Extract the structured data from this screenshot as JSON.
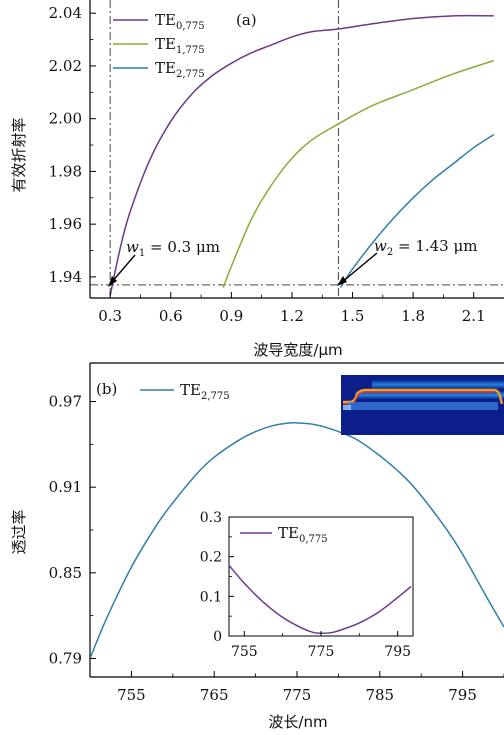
{
  "chart_data": [
    {
      "type": "line",
      "panel_label": "(a)",
      "xlabel": "波导宽度/μm",
      "ylabel": "有效折射率",
      "xlim": [
        0.2,
        2.25
      ],
      "ylim": [
        1.932,
        2.045
      ],
      "xticks": [
        "0.3",
        "0.6",
        "0.9",
        "1.2",
        "1.5",
        "1.8",
        "2.1"
      ],
      "yticks": [
        "1.94",
        "1.96",
        "1.98",
        "2.00",
        "2.02",
        "2.04"
      ],
      "legend": [
        "TE",
        "TE",
        "TE"
      ],
      "legend_subscripts": [
        "0,775",
        "1,775",
        "2,775"
      ],
      "series": [
        {
          "name": "TE0,775",
          "color": "#6b3a8c",
          "x": [
            0.3,
            0.35,
            0.4,
            0.5,
            0.6,
            0.7,
            0.8,
            0.9,
            1.0,
            1.1,
            1.2,
            1.3,
            1.43,
            1.6,
            1.8,
            2.0,
            2.2
          ],
          "y": [
            1.933,
            1.951,
            1.965,
            1.985,
            1.999,
            2.009,
            2.016,
            2.021,
            2.025,
            2.028,
            2.031,
            2.033,
            2.034,
            2.036,
            2.038,
            2.039,
            2.039
          ]
        },
        {
          "name": "TE1,775",
          "color": "#8bab3b",
          "x": [
            0.86,
            0.9,
            1.0,
            1.1,
            1.2,
            1.3,
            1.43,
            1.6,
            1.8,
            2.0,
            2.2
          ],
          "y": [
            1.936,
            1.944,
            1.962,
            1.975,
            1.985,
            1.992,
            1.998,
            2.005,
            2.011,
            2.017,
            2.022
          ]
        },
        {
          "name": "TE2,775",
          "color": "#2f7fab",
          "x": [
            1.44,
            1.5,
            1.6,
            1.7,
            1.8,
            1.9,
            2.0,
            2.1,
            2.2
          ],
          "y": [
            1.936,
            1.943,
            1.953,
            1.962,
            1.97,
            1.977,
            1.983,
            1.989,
            1.994
          ]
        }
      ],
      "reference_lines": {
        "vertical_x": [
          0.3,
          1.43
        ],
        "horizontal_y": [
          1.937
        ]
      },
      "annotations": [
        {
          "var": "w",
          "sub": "1",
          "text": " = 0.3 μm"
        },
        {
          "var": "w",
          "sub": "2",
          "text": " = 1.43 μm"
        }
      ]
    },
    {
      "type": "line",
      "panel_label": "(b)",
      "xlabel": "波长/nm",
      "ylabel": "透过率",
      "xlim": [
        750,
        800
      ],
      "ylim": [
        0.777,
        0.997
      ],
      "xticks": [
        "755",
        "765",
        "775",
        "785",
        "795"
      ],
      "yticks": [
        "0.79",
        "0.85",
        "0.91",
        "0.97"
      ],
      "legend": [
        "TE"
      ],
      "legend_subscripts": [
        "2,775"
      ],
      "series": [
        {
          "name": "TE2,775",
          "color": "#2f7fab",
          "x": [
            750,
            752,
            755,
            758,
            760,
            763,
            765,
            768,
            770,
            772,
            774,
            775,
            777,
            779,
            782,
            785,
            788,
            790,
            793,
            795,
            798,
            800
          ],
          "y": [
            0.79,
            0.818,
            0.854,
            0.883,
            0.899,
            0.92,
            0.931,
            0.943,
            0.949,
            0.953,
            0.955,
            0.955,
            0.954,
            0.951,
            0.944,
            0.932,
            0.917,
            0.904,
            0.881,
            0.863,
            0.832,
            0.812
          ]
        }
      ],
      "inset": {
        "type": "line",
        "xlim": [
          751,
          799
        ],
        "ylim": [
          0,
          0.3
        ],
        "xticks": [
          "755",
          "775",
          "795"
        ],
        "yticks": [
          "0",
          "0.1",
          "0.2",
          "0.3"
        ],
        "legend": [
          "TE"
        ],
        "legend_subscripts": [
          "0,775"
        ],
        "series": [
          {
            "name": "TE0,775",
            "color": "#6b3a8c",
            "x": [
              751,
              755,
              760,
              765,
              770,
              773,
              775,
              778,
              781,
              785,
              790,
              795,
              798.5
            ],
            "y": [
              0.178,
              0.133,
              0.085,
              0.047,
              0.02,
              0.009,
              0.007,
              0.009,
              0.018,
              0.033,
              0.06,
              0.097,
              0.125
            ]
          }
        ]
      }
    }
  ]
}
